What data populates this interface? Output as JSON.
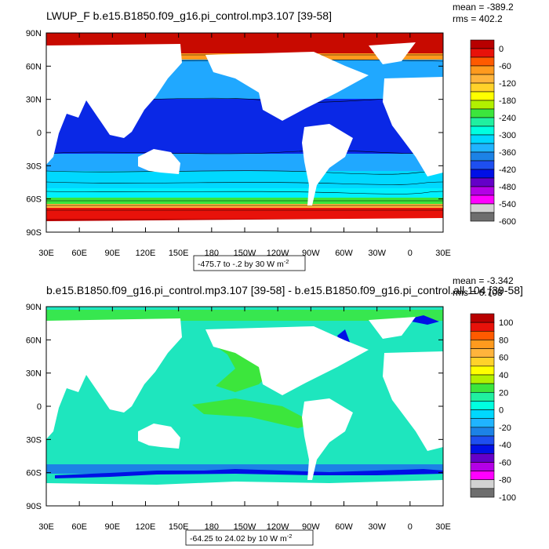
{
  "panels": [
    {
      "id": "top",
      "title": "LWUP_F b.e15.B1850.f09_g16.pi_control.mp3.107 [39-58]",
      "stats": {
        "mean": "mean = -389.2",
        "rms": "rms = 402.2"
      },
      "caption": {
        "text": "-475.7 to -.2 by 30  W m",
        "unit_exp": "-2"
      },
      "y_ticks": [
        "90N",
        "60N",
        "30N",
        "0",
        "30S",
        "60S",
        "90S"
      ],
      "x_ticks": [
        "30E",
        "60E",
        "90E",
        "120E",
        "150E",
        "180",
        "150W",
        "120W",
        "90W",
        "60W",
        "30W",
        "0",
        "30E"
      ],
      "legend": {
        "labels": [
          "0",
          "-60",
          "-120",
          "-180",
          "-240",
          "-300",
          "-360",
          "-420",
          "-480",
          "-540",
          "-600"
        ],
        "colors": [
          "#b80000",
          "#e8120a",
          "#ff5a00",
          "#ff9a1e",
          "#ffb43c",
          "#ffd22a",
          "#ffff00",
          "#b2f000",
          "#3ce63c",
          "#20f0a0",
          "#00ffe0",
          "#00d8ff",
          "#20b4ff",
          "#1c82e6",
          "#1e4ff0",
          "#0010e6",
          "#6400c8",
          "#b400e6",
          "#ff00ff",
          "#d2d2d2",
          "#6e6e6e"
        ]
      },
      "map": {
        "land": "#ffffff",
        "ocean_base": "#1e8cf0",
        "tropical": "#0a28e6",
        "subtropical": "#20a8ff",
        "southern": "#00f0ff",
        "arctic": "#c80a00"
      }
    },
    {
      "id": "bottom",
      "title": "b.e15.B1850.f09_g16.pi_control.mp3.107 [39-58] - b.e15.B1850.f09_g16.pi_control.all.104 [39-58]",
      "stats": {
        "mean": "mean = -3.342",
        "rms": "rms = 6.708"
      },
      "caption": {
        "text": "-64.25 to 24.02 by 10  W m",
        "unit_exp": "-2"
      },
      "y_ticks": [
        "90N",
        "60N",
        "30N",
        "0",
        "30S",
        "60S",
        "90S"
      ],
      "x_ticks": [
        "30E",
        "60E",
        "90E",
        "120E",
        "150E",
        "180",
        "150W",
        "120W",
        "90W",
        "60W",
        "30W",
        "0",
        "30E"
      ],
      "legend": {
        "labels": [
          "100",
          "80",
          "60",
          "40",
          "20",
          "0",
          "-20",
          "-40",
          "-60",
          "-80",
          "-100"
        ],
        "colors": [
          "#b80000",
          "#e8120a",
          "#ff5a00",
          "#ff9a1e",
          "#ffb43c",
          "#ffd22a",
          "#ffff00",
          "#b2f000",
          "#3ce63c",
          "#20f0a0",
          "#00ffe0",
          "#00d8ff",
          "#20b4ff",
          "#1c82e6",
          "#1e4ff0",
          "#0010e6",
          "#6400c8",
          "#b400e6",
          "#ff00ff",
          "#d2d2d2",
          "#6e6e6e"
        ]
      },
      "map": {
        "land": "#ffffff",
        "ocean_base": "#1ee6be",
        "green_band": "#3ce63c",
        "blue_band": "#1c82e6",
        "dark_band": "#0010e6"
      }
    }
  ]
}
